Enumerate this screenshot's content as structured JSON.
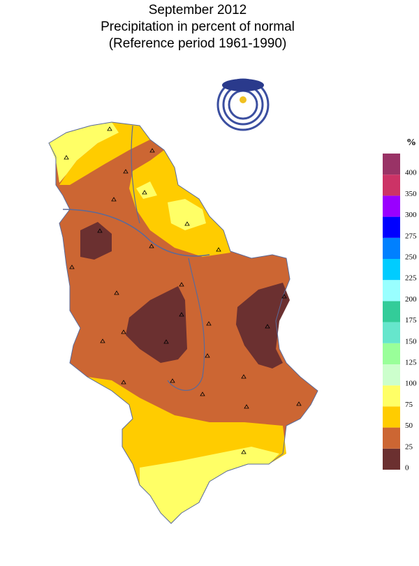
{
  "title": [
    "September 2012",
    "Precipitation in percent of normal",
    "(Reference period 1961-1990)"
  ],
  "legend": {
    "unit": "%",
    "bins": [
      {
        "label": "0",
        "color": "#6b3030"
      },
      {
        "label": "25",
        "color": "#cc6633"
      },
      {
        "label": "50",
        "color": "#ffcc00"
      },
      {
        "label": "75",
        "color": "#ffff66"
      },
      {
        "label": "100",
        "color": "#ccffcc"
      },
      {
        "label": "125",
        "color": "#99ff99"
      },
      {
        "label": "150",
        "color": "#66e6cc"
      },
      {
        "label": "175",
        "color": "#33cc99"
      },
      {
        "label": "200",
        "color": "#99ffff"
      },
      {
        "label": "225",
        "color": "#00ccff"
      },
      {
        "label": "250",
        "color": "#0080ff"
      },
      {
        "label": "275",
        "color": "#0000ff"
      },
      {
        "label": "300",
        "color": "#9900ff"
      },
      {
        "label": "350",
        "color": "#cc3366"
      },
      {
        "label": "400",
        "color": "#993366"
      }
    ]
  }
}
